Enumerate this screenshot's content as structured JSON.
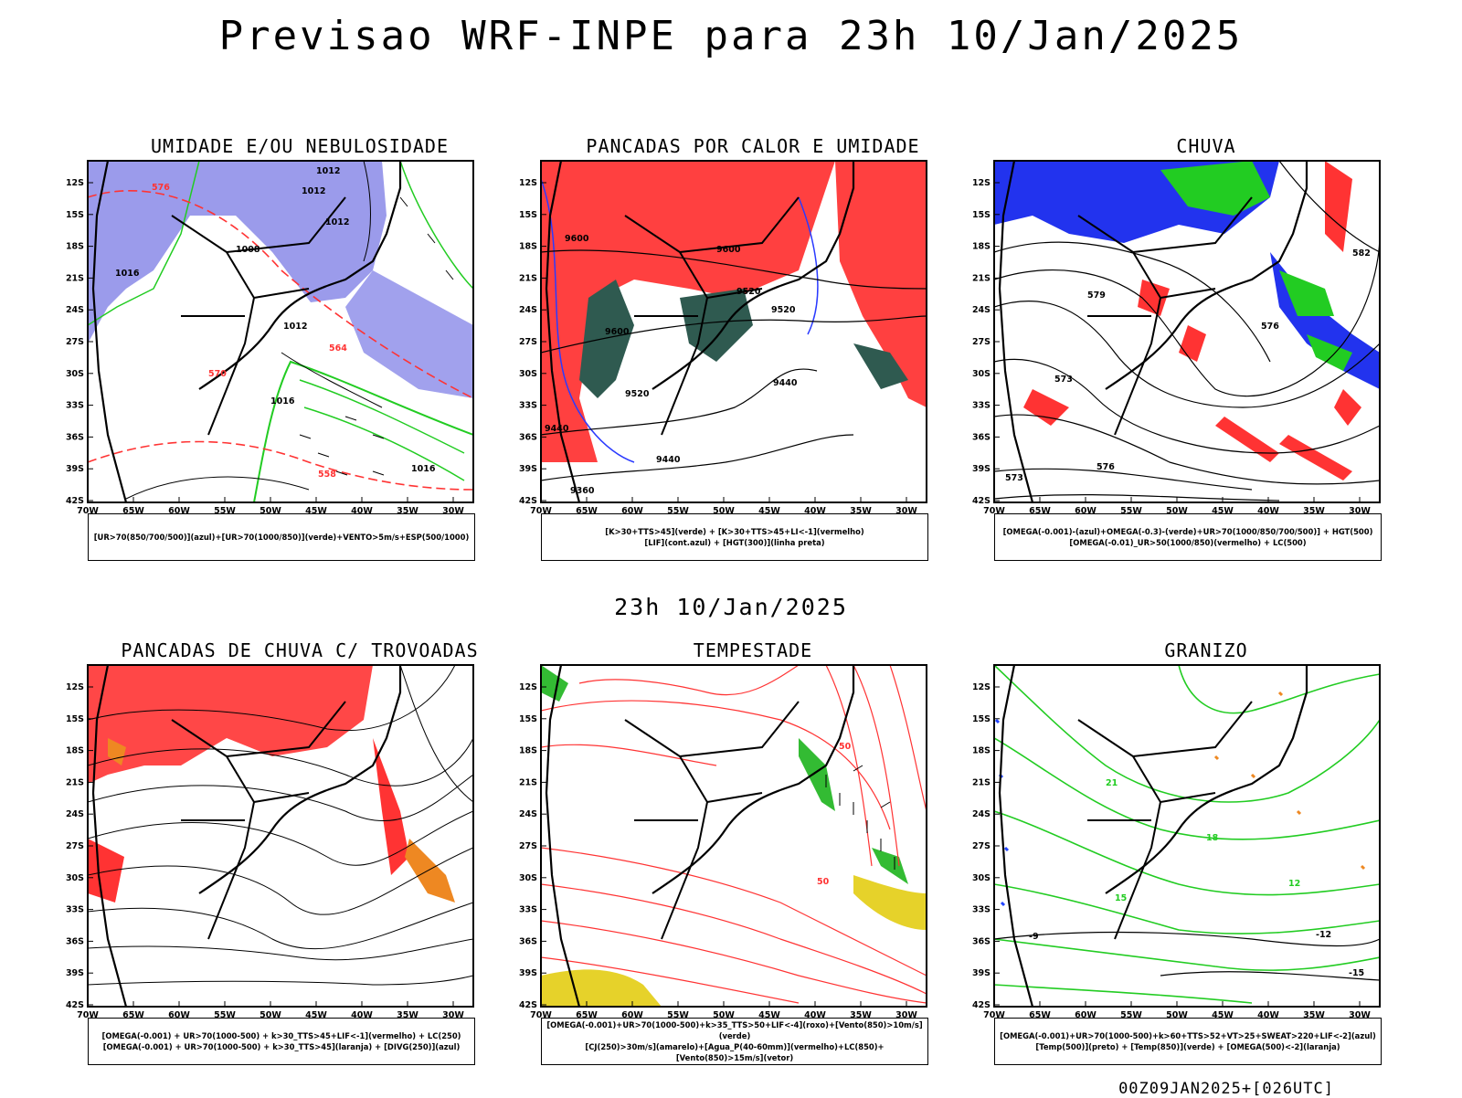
{
  "header": {
    "title": "Previsao WRF-INPE  para 23h 10/Jan/2025"
  },
  "middle": {
    "title": "23h 10/Jan/2025"
  },
  "footer": {
    "run": "00Z09JAN2025+[026UTC]"
  },
  "axes": {
    "lat_labels": [
      "12S",
      "15S",
      "18S",
      "21S",
      "24S",
      "27S",
      "30S",
      "33S",
      "36S",
      "39S",
      "42S"
    ],
    "lon_labels": [
      "70W",
      "65W",
      "60W",
      "55W",
      "50W",
      "45W",
      "40W",
      "35W",
      "30W"
    ]
  },
  "panels": [
    {
      "id": "umidade",
      "title": "UMIDADE E/OU NEBULOSIDADE",
      "legend": [
        "[UR>70(850/700/500)](azul)+[UR>70(1000/850)](verde)+VENTO>5m/s+ESP(500/1000)"
      ],
      "contour_labels": [
        "1012",
        "1012",
        "1012",
        "1008",
        "1016",
        "1012",
        "1016",
        "1016",
        "576",
        "570",
        "564",
        "558"
      ],
      "colors": {
        "blue": "#8a8ae8",
        "green": "#22cc22",
        "red": "#ff3333"
      }
    },
    {
      "id": "pancadas",
      "title": "PANCADAS POR CALOR E UMIDADE",
      "legend": [
        "[K>30+TTS>45](verde) + [K>30+TTS>45+LI<-1](vermelho)",
        "[LIF](cont.azul) + [HGT(300)](linha preta)"
      ],
      "contour_labels": [
        "9600",
        "9600",
        "9600",
        "9520",
        "9520",
        "9520",
        "9440",
        "9440",
        "9440",
        "9360"
      ],
      "colors": {
        "red": "#ff4040",
        "green": "#2f5a50",
        "blue": "#2a3aff"
      }
    },
    {
      "id": "chuva",
      "title": "CHUVA",
      "legend": [
        "[OMEGA(-0.001)-(azul)+OMEGA(-0.3)-(verde)+UR>70(1000/850/700/500)] + HGT(500)",
        "[OMEGA(-0.01)_UR>50(1000/850)(vermelho) + LC(500)"
      ],
      "contour_labels": [
        "582",
        "579",
        "576",
        "573",
        "576",
        "573"
      ],
      "colors": {
        "blue": "#2233ee",
        "green": "#22cc22",
        "red": "#ff3333"
      }
    },
    {
      "id": "trovoadas",
      "title": "PANCADAS DE CHUVA C/ TROVOADAS",
      "legend": [
        "[OMEGA(-0.001) + UR>70(1000-500) + k>30_TTS>45+LIF<-1](vermelho) + LC(250)",
        "[OMEGA(-0.001) + UR>70(1000-500) + k>30_TTS>45](laranja) + [DIVG(250)](azul)"
      ],
      "colors": {
        "red": "#ff3333",
        "orange": "#ee8822",
        "blue": "#2244ff"
      }
    },
    {
      "id": "tempestade",
      "title": "TEMPESTADE",
      "legend": [
        "[OMEGA(-0.001)+UR>70(1000-500)+k>35_TTS>50+LIF<-4](roxo)+[Vento(850)>10m/s](verde)",
        "[CJ(250)>30m/s](amarelo)+[Agua_P(40-60mm)](vermelho)+LC(850)+[Vento(850)>15m/s](vetor)"
      ],
      "contour_labels": [
        "50",
        "50"
      ],
      "colors": {
        "red": "#ff3333",
        "green": "#33bb33",
        "yellow": "#e6d22a"
      }
    },
    {
      "id": "granizo",
      "title": "GRANIZO",
      "legend": [
        "[OMEGA(-0.001)+UR>70(1000-500)+k>60+TTS>52+VT>25+SWEAT>220+LIF<-2](azul)",
        "[Temp(500)](preto) + [Temp(850)](verde) + [OMEGA(500)<-2](laranja)"
      ],
      "contour_labels": [
        "21",
        "18",
        "15",
        "12",
        "-12",
        "-15",
        "-9"
      ],
      "colors": {
        "green": "#22cc22",
        "orange": "#ee8822",
        "blue": "#2244ff"
      }
    }
  ]
}
